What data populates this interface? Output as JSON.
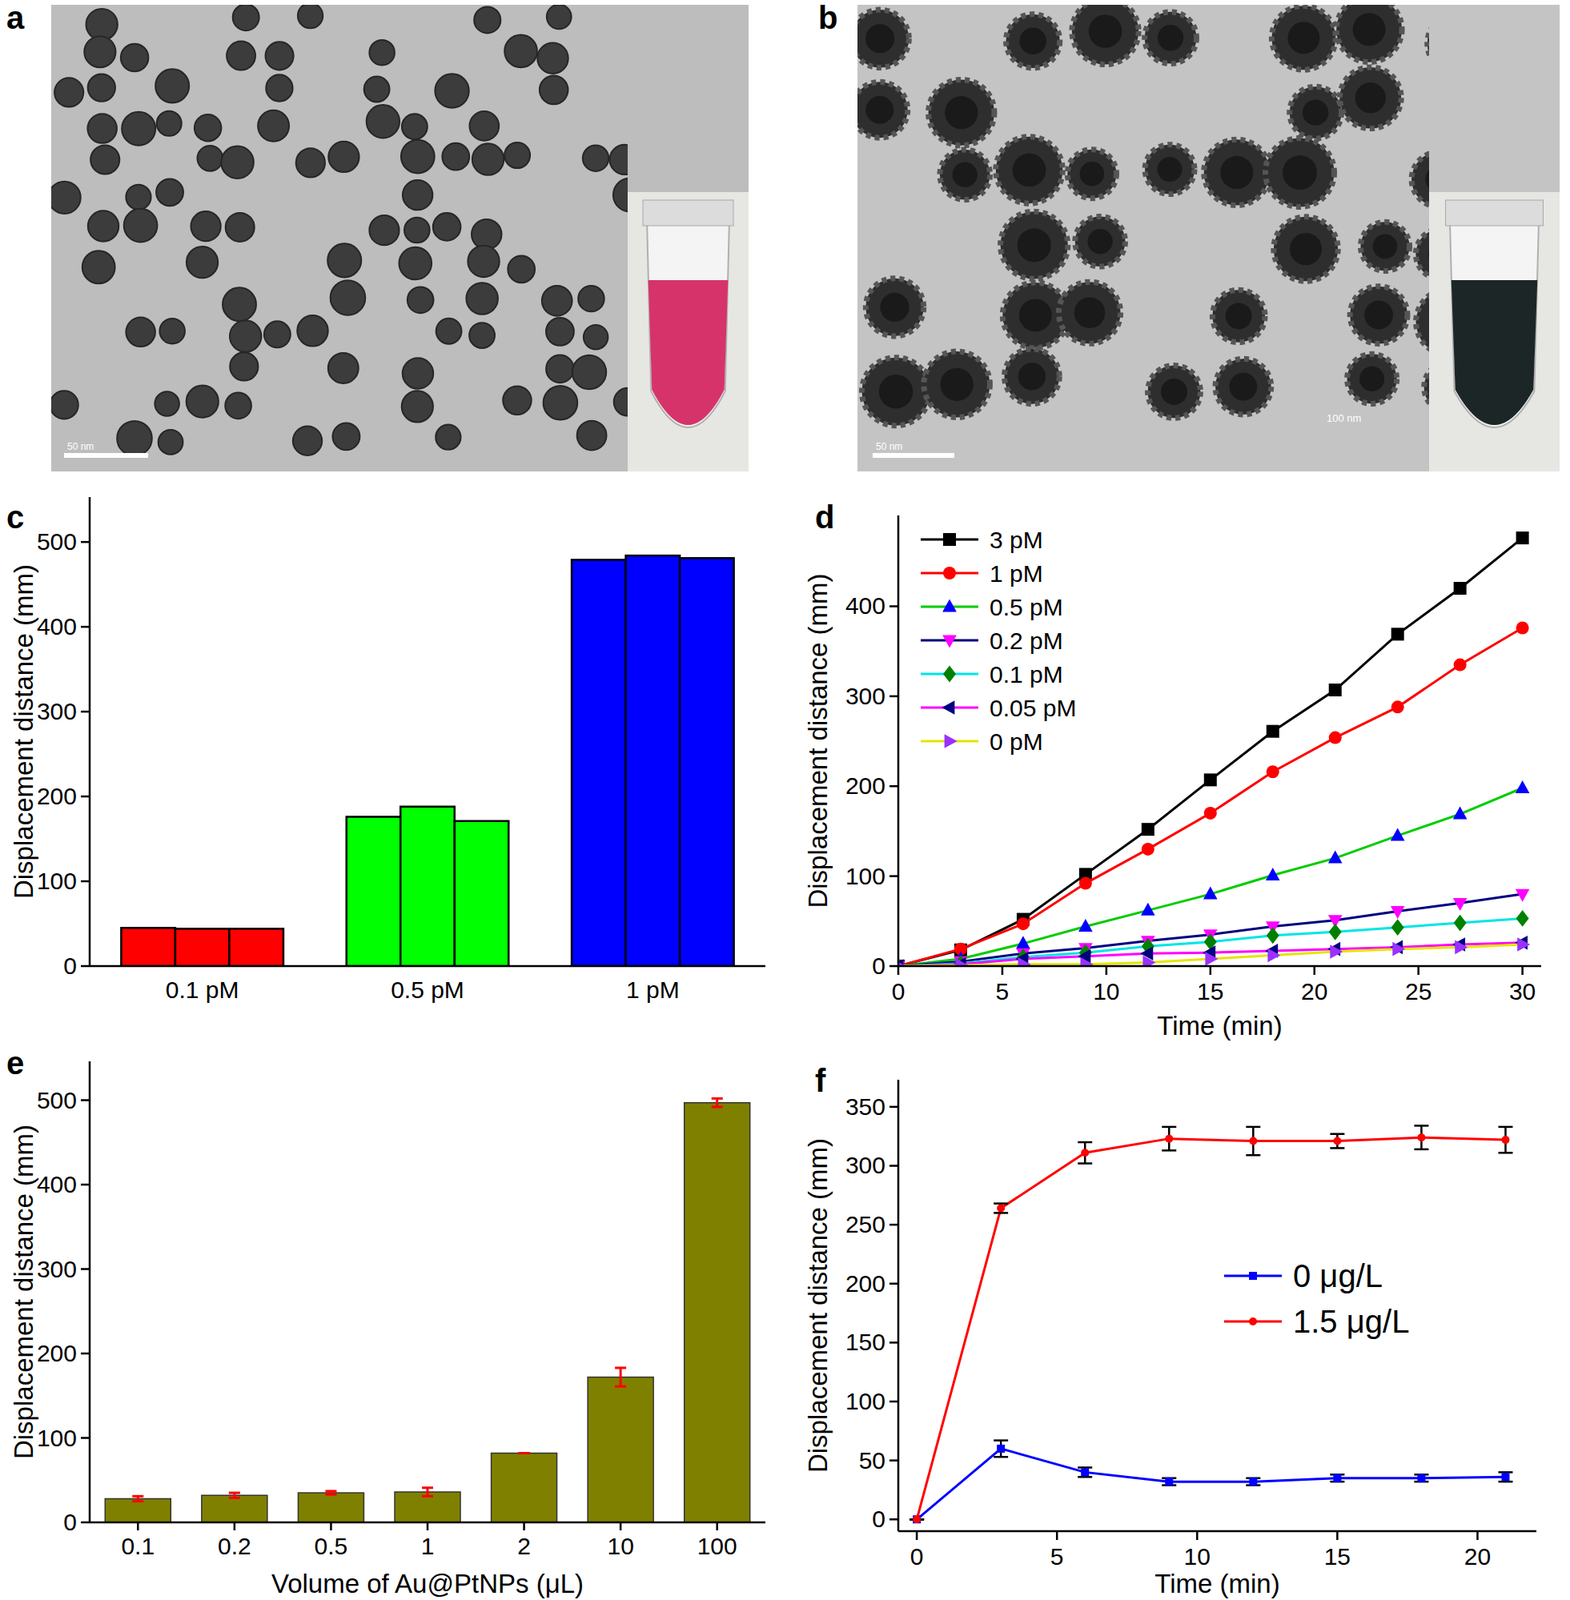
{
  "chart_data": [
    {
      "type": "image",
      "title": "a",
      "annotations": [
        "50 nm"
      ]
    },
    {
      "type": "image",
      "title": "b",
      "annotations": [
        "50 nm",
        "100 nm"
      ]
    },
    {
      "type": "bar",
      "title": "c",
      "y_label": "Displacement distance (mm)",
      "categories": [
        "0.1 pM",
        "0.5 pM",
        "1 pM"
      ],
      "series": [
        {
          "values": [
            45,
            176,
            479
          ]
        },
        {
          "values": [
            44,
            188,
            484
          ]
        },
        {
          "values": [
            44,
            171,
            481
          ]
        }
      ],
      "colors": [
        "#ff0000",
        "#00ff00",
        "#0000ff"
      ],
      "ylim": [
        0,
        553
      ],
      "yticks": [
        0,
        100,
        200,
        300,
        400,
        500
      ]
    },
    {
      "type": "line",
      "title": "d",
      "x_label": "Time (min)",
      "y_label": "Displacement distance (mm)",
      "x": [
        0,
        3,
        6,
        9,
        12,
        15,
        18,
        21,
        24,
        27,
        30
      ],
      "series": [
        {
          "name": "3 pM",
          "color": "#000000",
          "marker": "square",
          "values": [
            0,
            18,
            52,
            102,
            152,
            207,
            261,
            307,
            369,
            420,
            476
          ]
        },
        {
          "name": "1 pM",
          "color": "#ff0000",
          "marker": "circle",
          "values": [
            0,
            19,
            47,
            92,
            130,
            170,
            216,
            254,
            288,
            335,
            376
          ]
        },
        {
          "name": "0.5 pM",
          "color": "#00cc00",
          "marker": "triangle-up",
          "values": [
            0,
            8,
            25,
            44,
            62,
            80,
            101,
            120,
            145,
            169,
            198
          ]
        },
        {
          "name": "0.2 pM",
          "color": "#000080",
          "marker": "triangle-down",
          "values": [
            0,
            5,
            14,
            20,
            28,
            35,
            44,
            51,
            61,
            70,
            80
          ]
        },
        {
          "name": "0.1 pM",
          "color": "#00e5e5",
          "marker": "diamond",
          "values": [
            0,
            3,
            10,
            15,
            22,
            27,
            34,
            38,
            43,
            48,
            53
          ]
        },
        {
          "name": "0.05 pM",
          "color": "#ff00ff",
          "marker": "triangle-left",
          "values": [
            0,
            2,
            8,
            11,
            14,
            15,
            17,
            19,
            21,
            24,
            26
          ]
        },
        {
          "name": "0 pM",
          "color": "#e5e500",
          "marker": "triangle-right",
          "values": [
            0,
            1,
            2,
            2,
            4,
            8,
            12,
            16,
            19,
            21,
            24
          ]
        }
      ],
      "xlim": [
        0,
        30.9
      ],
      "xticks": [
        0,
        5,
        10,
        15,
        20,
        25,
        30
      ],
      "ylim": [
        0,
        501
      ],
      "yticks": [
        0,
        100,
        200,
        300,
        400
      ],
      "legend": "upper left"
    },
    {
      "type": "bar",
      "title": "e",
      "x_label": "Volume of Au@PtNPs (μL)",
      "y_label": "Displacement distance (mm)",
      "categories": [
        "0.1",
        "0.2",
        "0.5",
        "1",
        "2",
        "10",
        "100"
      ],
      "values": [
        28,
        32,
        35,
        36,
        82,
        172,
        497
      ],
      "errors": [
        3,
        3,
        2,
        5,
        0,
        11,
        5
      ],
      "color": "#808000",
      "ylim": [
        0,
        546
      ],
      "yticks": [
        0,
        100,
        200,
        300,
        400,
        500
      ]
    },
    {
      "type": "line",
      "title": "f",
      "x_label": "Time (min)",
      "y_label": "Displacement distance (mm)",
      "x": [
        0,
        3,
        6,
        9,
        12,
        15,
        18,
        21
      ],
      "series": [
        {
          "name": "0 μg/L",
          "color": "#0000ff",
          "marker": "square",
          "values": [
            0,
            60,
            40,
            32,
            32,
            35,
            35,
            36
          ],
          "errors": [
            0,
            7,
            4,
            3,
            3,
            3,
            3,
            4
          ]
        },
        {
          "name": "1.5 μg/L",
          "color": "#ff0000",
          "marker": "circle",
          "values": [
            0,
            264,
            311,
            323,
            321,
            321,
            324,
            322
          ],
          "errors": [
            0,
            4,
            9,
            10,
            12,
            6,
            10,
            11
          ]
        }
      ],
      "xlim": [
        -0.66,
        22.1
      ],
      "xticks": [
        0,
        5,
        10,
        15,
        20
      ],
      "ylim": [
        -10,
        373
      ],
      "yticks": [
        0,
        50,
        100,
        150,
        200,
        250,
        300,
        350
      ],
      "legend": "center right"
    }
  ]
}
